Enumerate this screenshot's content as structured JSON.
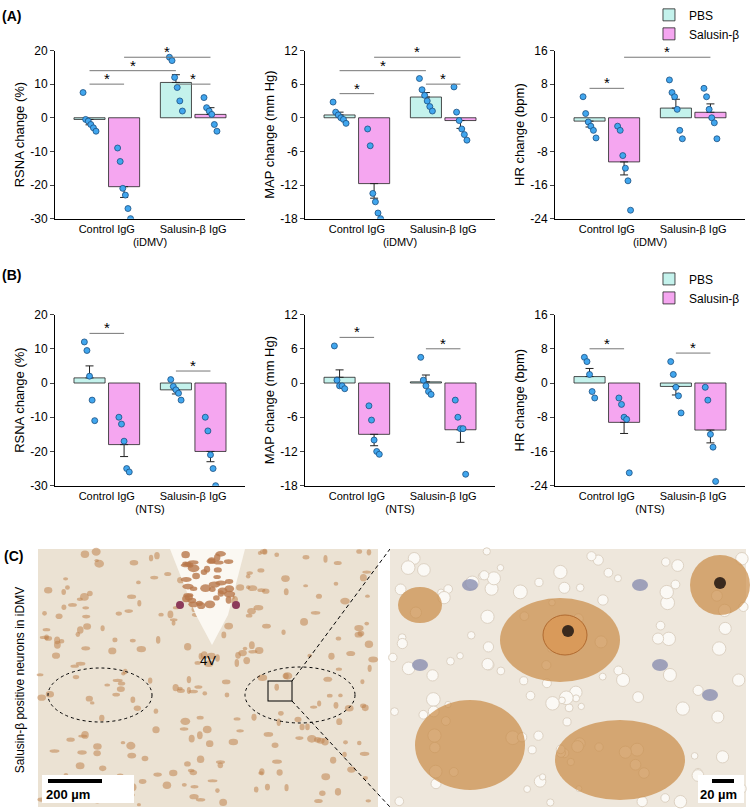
{
  "chart_data": [
    {
      "type": "bar",
      "y_label": "RSNA change (%)",
      "x_label": "(iDMV)",
      "categories": [
        "Control IgG",
        "Salusin-β IgG"
      ],
      "ylim": [
        -30,
        20
      ],
      "yticks": [
        -30,
        -20,
        -10,
        0,
        10,
        20
      ],
      "grid": false,
      "series": [
        {
          "name": "PBS",
          "color": "#c4f2ec",
          "values": [
            -0.5,
            10.5
          ],
          "errors": [
            1.6,
            2.3
          ],
          "points": [
            [
              7.5,
              -0.5,
              -1,
              -2,
              -3,
              -4
            ],
            [
              18,
              17,
              12,
              9,
              5,
              2
            ]
          ]
        },
        {
          "name": "Salusin-β",
          "color": "#f5a6f0",
          "values": [
            -20.5,
            1.0
          ],
          "errors": [
            3.2,
            2.0
          ],
          "points": [
            [
              -9,
              -13,
              -21,
              -23,
              -27,
              -30
            ],
            [
              6,
              3,
              2,
              1,
              -2,
              -4
            ]
          ]
        }
      ],
      "significance": [
        {
          "from": [
            "Control IgG",
            "PBS"
          ],
          "to": [
            "Control IgG",
            "Salusin-β"
          ],
          "label": "*"
        },
        {
          "from": [
            "Salusin-β IgG",
            "PBS"
          ],
          "to": [
            "Salusin-β IgG",
            "Salusin-β"
          ],
          "label": "*"
        },
        {
          "from": [
            "Control IgG",
            "Salusin-β"
          ],
          "to": [
            "Salusin-β IgG",
            "Salusin-β"
          ],
          "label": "*"
        },
        {
          "from": [
            "Control IgG",
            "PBS"
          ],
          "to": [
            "Salusin-β IgG",
            "PBS"
          ],
          "label": "*"
        }
      ]
    },
    {
      "type": "bar",
      "y_label": "MAP change (mm Hg)",
      "x_label": "(iDMV)",
      "categories": [
        "Control IgG",
        "Salusin-β IgG"
      ],
      "ylim": [
        -18,
        12
      ],
      "yticks": [
        -18,
        -12,
        -6,
        0,
        6,
        12
      ],
      "grid": false,
      "series": [
        {
          "name": "PBS",
          "color": "#c4f2ec",
          "values": [
            0.5,
            3.7
          ],
          "errors": [
            0.5,
            0.8
          ],
          "points": [
            [
              2.8,
              1,
              0.5,
              0,
              -0.3,
              -1
            ],
            [
              7,
              5,
              4,
              3,
              2,
              1.2
            ]
          ]
        },
        {
          "name": "Salusin-β",
          "color": "#f5a6f0",
          "values": [
            -11.75,
            -0.5
          ],
          "errors": [
            2.6,
            1.4
          ],
          "points": [
            [
              -2,
              -5,
              -13.5,
              -15,
              -17,
              -18
            ],
            [
              5.5,
              1,
              -0.5,
              -2,
              -3,
              -4
            ]
          ]
        }
      ],
      "significance": [
        {
          "from": [
            "Control IgG",
            "PBS"
          ],
          "to": [
            "Control IgG",
            "Salusin-β"
          ],
          "label": "*"
        },
        {
          "from": [
            "Salusin-β IgG",
            "PBS"
          ],
          "to": [
            "Salusin-β IgG",
            "Salusin-β"
          ],
          "label": "*"
        },
        {
          "from": [
            "Control IgG",
            "Salusin-β"
          ],
          "to": [
            "Salusin-β IgG",
            "Salusin-β"
          ],
          "label": "*"
        },
        {
          "from": [
            "Control IgG",
            "PBS"
          ],
          "to": [
            "Salusin-β IgG",
            "PBS"
          ],
          "label": "*"
        }
      ]
    },
    {
      "type": "bar",
      "y_label": "HR change (bpm)",
      "x_label": "(iDMV)",
      "legend": "top right",
      "categories": [
        "Control IgG",
        "Salusin-β IgG"
      ],
      "ylim": [
        -24,
        16
      ],
      "yticks": [
        -24,
        -16,
        -8,
        0,
        8,
        16
      ],
      "grid": false,
      "series": [
        {
          "name": "PBS",
          "color": "#c4f2ec",
          "values": [
            -0.8,
            2.3
          ],
          "errors": [
            1.4,
            2.1
          ],
          "points": [
            [
              5,
              1,
              -1,
              -2,
              -3,
              -4.8
            ],
            [
              9,
              6,
              5,
              2,
              -3,
              -5
            ]
          ]
        },
        {
          "name": "Salusin-β",
          "color": "#f5a6f0",
          "values": [
            -10.5,
            1.3
          ],
          "errors": [
            3.1,
            2.0
          ],
          "points": [
            [
              -2,
              -3,
              -9,
              -12,
              -15,
              -22
            ],
            [
              7,
              5,
              2,
              0,
              -1.2,
              -5
            ]
          ]
        }
      ],
      "significance": [
        {
          "from": [
            "Control IgG",
            "PBS"
          ],
          "to": [
            "Control IgG",
            "Salusin-β"
          ],
          "label": "*"
        },
        {
          "from": [
            "Control IgG",
            "Salusin-β"
          ],
          "to": [
            "Salusin-β IgG",
            "Salusin-β"
          ],
          "label": "*"
        }
      ]
    },
    {
      "type": "bar",
      "y_label": "RSNA change (%)",
      "x_label": "(NTS)",
      "categories": [
        "Control IgG",
        "Salusin-β IgG"
      ],
      "ylim": [
        -30,
        20
      ],
      "yticks": [
        -30,
        -20,
        -10,
        0,
        10,
        20
      ],
      "grid": false,
      "series": [
        {
          "name": "PBS",
          "color": "#c4f2ec",
          "values": [
            1.5,
            -2.0
          ],
          "errors": [
            3.5,
            1.2
          ],
          "points": [
            [
              12,
              9.5,
              2,
              -5,
              -11
            ],
            [
              1,
              -1,
              -2,
              -3,
              -5
            ]
          ]
        },
        {
          "name": "Salusin-β",
          "color": "#f5a6f0",
          "values": [
            -18.0,
            -20.0
          ],
          "errors": [
            3.5,
            3.0
          ],
          "points": [
            [
              -10,
              -12,
              -17,
              -25,
              -26
            ],
            [
              -10,
              -14,
              -21,
              -25,
              -30
            ]
          ]
        }
      ],
      "significance": [
        {
          "from": [
            "Control IgG",
            "PBS"
          ],
          "to": [
            "Control IgG",
            "Salusin-β"
          ],
          "label": "*"
        },
        {
          "from": [
            "Salusin-β IgG",
            "PBS"
          ],
          "to": [
            "Salusin-β IgG",
            "Salusin-β"
          ],
          "label": "*"
        }
      ]
    },
    {
      "type": "bar",
      "y_label": "MAP change (mm Hg)",
      "x_label": "(NTS)",
      "categories": [
        "Control IgG",
        "Salusin-β IgG"
      ],
      "ylim": [
        -18,
        12
      ],
      "yticks": [
        -18,
        -12,
        -6,
        0,
        6,
        12
      ],
      "grid": false,
      "series": [
        {
          "name": "PBS",
          "color": "#c4f2ec",
          "values": [
            1.0,
            0.2
          ],
          "errors": [
            1.3,
            1.2
          ],
          "points": [
            [
              6.5,
              0.5,
              -0.5,
              -0.5,
              -1
            ],
            [
              4.5,
              0.5,
              -0.5,
              -1.5,
              -2
            ]
          ]
        },
        {
          "name": "Salusin-β",
          "color": "#f5a6f0",
          "values": [
            -9.0,
            -8.2
          ],
          "errors": [
            2.0,
            2.2
          ],
          "points": [
            [
              -4,
              -6.5,
              -10,
              -12,
              -12.5
            ],
            [
              -3,
              -6,
              -8,
              -8,
              -16
            ]
          ]
        }
      ],
      "significance": [
        {
          "from": [
            "Control IgG",
            "PBS"
          ],
          "to": [
            "Control IgG",
            "Salusin-β"
          ],
          "label": "*"
        },
        {
          "from": [
            "Salusin-β IgG",
            "PBS"
          ],
          "to": [
            "Salusin-β IgG",
            "Salusin-β"
          ],
          "label": "*"
        }
      ]
    },
    {
      "type": "bar",
      "y_label": "HR change (bpm)",
      "x_label": "(NTS)",
      "legend": "top right",
      "categories": [
        "Control IgG",
        "Salusin-β IgG"
      ],
      "ylim": [
        -24,
        16
      ],
      "yticks": [
        -24,
        -16,
        -8,
        0,
        8,
        16
      ],
      "grid": false,
      "series": [
        {
          "name": "PBS",
          "color": "#c4f2ec",
          "values": [
            1.5,
            -0.8
          ],
          "errors": [
            1.9,
            2.0
          ],
          "points": [
            [
              6,
              5,
              2,
              -2,
              -3.5
            ],
            [
              5,
              2,
              -1,
              -3,
              -7
            ]
          ]
        },
        {
          "name": "Salusin-β",
          "color": "#f5a6f0",
          "values": [
            -9.2,
            -11.0
          ],
          "errors": [
            2.6,
            3.0
          ],
          "points": [
            [
              -3.5,
              -5,
              -8,
              -8.5,
              -21
            ],
            [
              -1,
              -4,
              -12,
              -15,
              -23
            ]
          ]
        }
      ],
      "significance": [
        {
          "from": [
            "Control IgG",
            "PBS"
          ],
          "to": [
            "Control IgG",
            "Salusin-β"
          ],
          "label": "*"
        },
        {
          "from": [
            "Salusin-β IgG",
            "PBS"
          ],
          "to": [
            "Salusin-β IgG",
            "Salusin-β"
          ],
          "label": "*"
        }
      ]
    }
  ],
  "figure": {
    "panel_labels": [
      "(A)",
      "(B)"
    ],
    "image_panel": {
      "label": "(C)",
      "side_label": "Salusin-β positive neurons in iDMV",
      "left": {
        "label": "4V",
        "scale_bar": "200 µm"
      },
      "right": {
        "scale_bar": "20 µm"
      }
    }
  }
}
